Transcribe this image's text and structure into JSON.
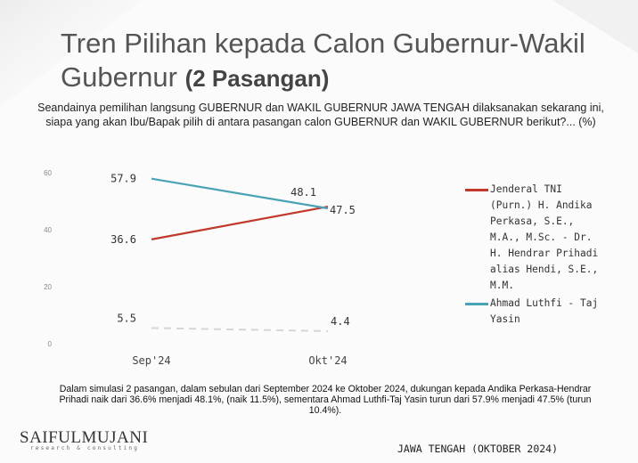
{
  "title": {
    "main": "Tren Pilihan kepada Calon Gubernur-Wakil Gubernur",
    "sub": "(2 Pasangan)"
  },
  "question": "Seandainya pemilihan langsung GUBERNUR dan WAKIL GUBERNUR JAWA TENGAH dilaksanakan sekarang ini, siapa yang akan Ibu/Bapak pilih di antara pasangan calon GUBERNUR dan WAKIL GUBERNUR berikut?... (%)",
  "chart_data": {
    "type": "line",
    "categories": [
      "Sep'24",
      "Okt'24"
    ],
    "series": [
      {
        "name": "Jenderal TNI (Purn.) H. Andika Perkasa, S.E., M.A., M.Sc. - Dr. H. Hendrar Prihadi alias Hendi, S.E., M.M.",
        "values": [
          36.6,
          48.1
        ],
        "labels": [
          "36.6",
          "48.1"
        ],
        "color": "#c0392b",
        "style": "solid"
      },
      {
        "name": "Ahmad Luthfi - Taj Yasin",
        "values": [
          57.9,
          47.5
        ],
        "labels": [
          "57.9",
          "47.5"
        ],
        "color": "#4aa3b5",
        "style": "solid"
      },
      {
        "name": "",
        "values": [
          5.5,
          4.4
        ],
        "labels": [
          "5.5",
          "4.4"
        ],
        "color": "#d6d6d6",
        "style": "dashed"
      }
    ],
    "yticks": [
      "0",
      "20",
      "40",
      "60"
    ],
    "ylim": [
      0,
      60
    ],
    "grid": false,
    "legend": "right"
  },
  "footnote": "Dalam simulasi 2 pasangan, dalam sebulan dari September 2024 ke Oktober 2024, dukungan kepada Andika Perkasa-Hendrar Prihadi naik dari 36.6% menjadi 48.1%, (naik 11.5%), sementara Ahmad Luthfi-Taj Yasin turun dari 57.9% menjadi 47.5% (turun 10.4%).",
  "logo": {
    "name": "SAIFULMUJANI",
    "tagline": "research & consulting"
  },
  "footer": "JAWA TENGAH (OKTOBER 2024)"
}
